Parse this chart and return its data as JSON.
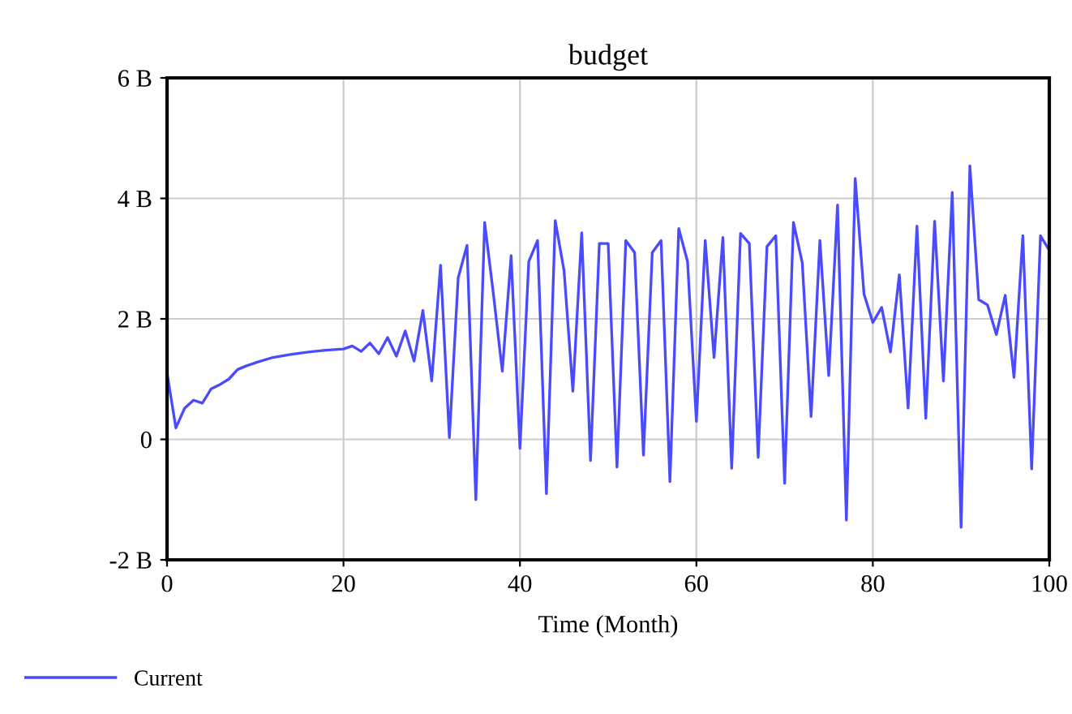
{
  "chart_data": {
    "type": "line",
    "title": "budget",
    "xlabel": "Time (Month)",
    "x": [
      0,
      1,
      2,
      3,
      4,
      5,
      6,
      7,
      8,
      9,
      10,
      12,
      14,
      16,
      18,
      20,
      21,
      22,
      23,
      24,
      25,
      26,
      27,
      28,
      29,
      30,
      31,
      32,
      33,
      34,
      35,
      36,
      37,
      38,
      39,
      40,
      41,
      42,
      43,
      44,
      45,
      46,
      47,
      48,
      49,
      50,
      51,
      52,
      53,
      54,
      55,
      56,
      57,
      58,
      59,
      60,
      61,
      62,
      63,
      64,
      65,
      66,
      67,
      68,
      69,
      70,
      71,
      72,
      73,
      74,
      75,
      76,
      77,
      78,
      79,
      80,
      81,
      82,
      83,
      84,
      85,
      86,
      87,
      88,
      89,
      90,
      91,
      92,
      93,
      94,
      95,
      96,
      97,
      98,
      99,
      100
    ],
    "series": [
      {
        "name": "Current",
        "color": "#4a4aff",
        "values": [
          1.1,
          0.19,
          0.52,
          0.65,
          0.6,
          0.84,
          0.91,
          1.0,
          1.16,
          1.22,
          1.27,
          1.36,
          1.41,
          1.45,
          1.48,
          1.5,
          1.55,
          1.46,
          1.6,
          1.42,
          1.69,
          1.38,
          1.8,
          1.3,
          2.14,
          0.97,
          2.89,
          0.03,
          2.68,
          3.22,
          -1.0,
          3.6,
          2.4,
          1.13,
          3.05,
          -0.15,
          2.95,
          3.3,
          -0.9,
          3.63,
          2.8,
          0.8,
          3.43,
          -0.35,
          3.25,
          3.25,
          -0.46,
          3.3,
          3.1,
          -0.26,
          3.1,
          3.3,
          -0.7,
          3.5,
          2.95,
          0.3,
          3.3,
          1.36,
          3.35,
          -0.48,
          3.42,
          3.25,
          -0.3,
          3.2,
          3.38,
          -0.73,
          3.6,
          2.93,
          0.38,
          3.3,
          1.06,
          3.89,
          -1.34,
          4.33,
          2.41,
          1.94,
          2.19,
          1.45,
          2.73,
          0.52,
          3.54,
          0.35,
          3.62,
          0.97,
          4.1,
          -1.46,
          4.54,
          2.32,
          2.23,
          1.74,
          2.39,
          1.03,
          3.38,
          -0.49,
          3.38,
          3.14
        ]
      }
    ],
    "xlim": [
      0,
      100
    ],
    "xticks": [
      0,
      20,
      40,
      60,
      80,
      100
    ],
    "ylim": [
      -2,
      6
    ],
    "yticks": [
      {
        "value": -2,
        "label": "-2 B"
      },
      0,
      {
        "value": 2,
        "label": "2 B"
      },
      {
        "value": 4,
        "label": "4 B"
      },
      {
        "value": 6,
        "label": "6 B"
      }
    ],
    "grid": true,
    "legend": "bottom left",
    "line_style": "solid"
  }
}
